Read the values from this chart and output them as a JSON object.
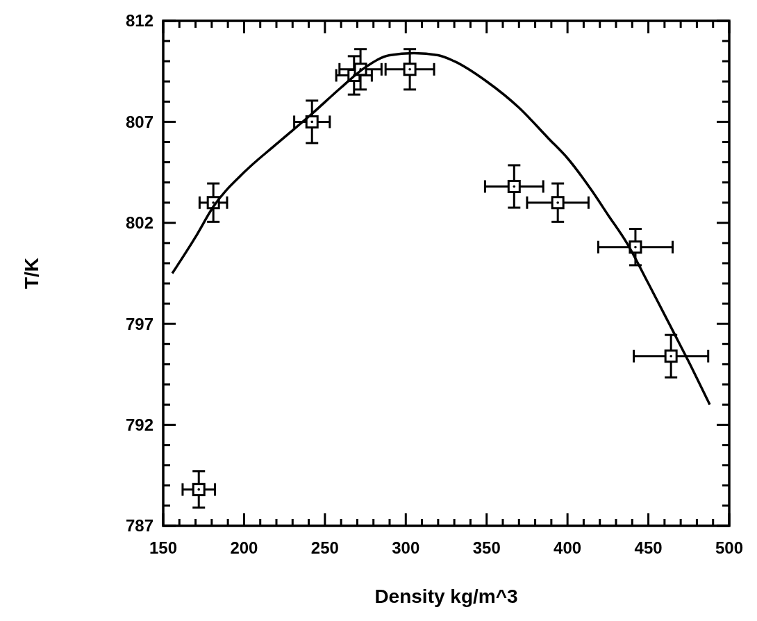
{
  "chart_data": {
    "type": "scatter",
    "xlabel": "Density kg/m^3",
    "ylabel": "T/K",
    "xlim": [
      150,
      500
    ],
    "ylim": [
      787,
      812
    ],
    "xticks": [
      150,
      {
        "value": 160,
        "label": null
      },
      {
        "value": 170,
        "label": null
      },
      {
        "value": 180,
        "label": null
      },
      {
        "value": 190,
        "label": null
      },
      200,
      {
        "value": 210,
        "label": null
      },
      {
        "value": 220,
        "label": null
      },
      {
        "value": 230,
        "label": null
      },
      {
        "value": 240,
        "label": null
      },
      250,
      {
        "value": 260,
        "label": null
      },
      {
        "value": 270,
        "label": null
      },
      {
        "value": 280,
        "label": null
      },
      {
        "value": 290,
        "label": null
      },
      300,
      {
        "value": 310,
        "label": null
      },
      {
        "value": 320,
        "label": null
      },
      {
        "value": 330,
        "label": null
      },
      {
        "value": 340,
        "label": null
      },
      350,
      {
        "value": 360,
        "label": null
      },
      {
        "value": 370,
        "label": null
      },
      {
        "value": 380,
        "label": null
      },
      {
        "value": 390,
        "label": null
      },
      400,
      {
        "value": 410,
        "label": null
      },
      {
        "value": 420,
        "label": null
      },
      {
        "value": 430,
        "label": null
      },
      {
        "value": 440,
        "label": null
      },
      450,
      {
        "value": 460,
        "label": null
      },
      {
        "value": 470,
        "label": null
      },
      {
        "value": 480,
        "label": null
      },
      {
        "value": 490,
        "label": null
      },
      500
    ],
    "yticks": [
      787,
      {
        "value": 788,
        "label": null
      },
      {
        "value": 789,
        "label": null
      },
      {
        "value": 790,
        "label": null
      },
      {
        "value": 791,
        "label": null
      },
      792,
      {
        "value": 793,
        "label": null
      },
      {
        "value": 794,
        "label": null
      },
      {
        "value": 795,
        "label": null
      },
      {
        "value": 796,
        "label": null
      },
      797,
      {
        "value": 798,
        "label": null
      },
      {
        "value": 799,
        "label": null
      },
      {
        "value": 800,
        "label": null
      },
      {
        "value": 801,
        "label": null
      },
      802,
      {
        "value": 803,
        "label": null
      },
      {
        "value": 804,
        "label": null
      },
      {
        "value": 805,
        "label": null
      },
      {
        "value": 806,
        "label": null
      },
      807,
      {
        "value": 808,
        "label": null
      },
      {
        "value": 809,
        "label": null
      },
      {
        "value": 810,
        "label": null
      },
      {
        "value": 811,
        "label": null
      },
      812
    ],
    "grid": false,
    "series": [
      {
        "color": "#000000",
        "marker": "square",
        "x": [
          172,
          181,
          242,
          268,
          272,
          302.5,
          367,
          394,
          442,
          464
        ],
        "values": [
          788.8,
          803.0,
          807.0,
          809.3,
          809.6,
          809.6,
          803.8,
          803.0,
          800.8,
          795.4
        ],
        "errors": [
          0.9,
          0.95,
          1.05,
          0.95,
          1.0,
          1.0,
          1.05,
          0.95,
          0.9,
          1.05
        ],
        "xerrors": [
          10,
          8.5,
          11,
          11,
          13,
          15,
          18,
          19,
          23,
          23
        ]
      },
      {
        "type": "line",
        "color": "#000000",
        "marker": "none",
        "line_style": "solid",
        "x": [
          155.6,
          170,
          181,
          200,
          220,
          242,
          260,
          275,
          290,
          305,
          320,
          330,
          350,
          370,
          388,
          400,
          415,
          425,
          436.7,
          450,
          465.5,
          477,
          488
        ],
        "values": [
          799.5,
          801.3,
          802.8,
          804.5,
          805.9,
          807.4,
          808.7,
          809.7,
          810.3,
          810.4,
          810.3,
          810.0,
          809.0,
          807.7,
          806.2,
          805.2,
          803.6,
          802.4,
          801.0,
          799.0,
          796.6,
          794.8,
          793.0
        ]
      }
    ]
  }
}
